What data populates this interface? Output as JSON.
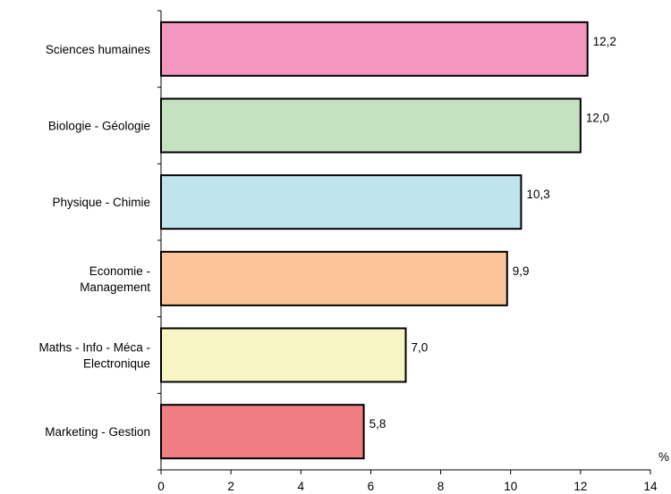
{
  "chart_data": {
    "type": "bar",
    "orientation": "horizontal",
    "categories": [
      [
        "Sciences humaines"
      ],
      [
        "Biologie - Géologie"
      ],
      [
        "Physique - Chimie"
      ],
      [
        "Economie -",
        "Management"
      ],
      [
        "Maths - Info - Méca -",
        "Electronique"
      ],
      [
        "Marketing - Gestion"
      ]
    ],
    "values": [
      12.2,
      12.0,
      10.3,
      9.9,
      7.0,
      5.8
    ],
    "value_labels": [
      "12,2",
      "12,0",
      "10,3",
      "9,9",
      "7,0",
      "5,8"
    ],
    "bar_colors": [
      "#f497c0",
      "#c4e2c0",
      "#c0e4ee",
      "#fbc599",
      "#f8f5c5",
      "#ef7d81"
    ],
    "xlim": [
      0,
      14
    ],
    "xticks": [
      0,
      2,
      4,
      6,
      8,
      10,
      12,
      14
    ],
    "xtick_labels": [
      "0",
      "2",
      "4",
      "6",
      "8",
      "10",
      "12",
      "14"
    ],
    "unit_label": "%",
    "title": "",
    "xlabel": "",
    "ylabel": "",
    "grid": false,
    "legend": false
  }
}
